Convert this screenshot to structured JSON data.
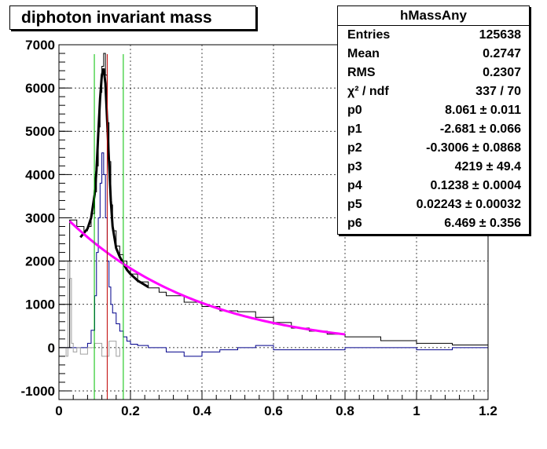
{
  "title": "diphoton invariant mass",
  "stats": {
    "name": "hMassAny",
    "rows": [
      {
        "label": "Entries",
        "value": "125638"
      },
      {
        "label": "Mean",
        "value": "0.2747"
      },
      {
        "label": "RMS",
        "value": "0.2307"
      },
      {
        "label": "χ² / ndf",
        "value": "337 / 70"
      },
      {
        "label": "p0",
        "value": "8.061 ± 0.011"
      },
      {
        "label": "p1",
        "value": "-2.681 ± 0.066"
      },
      {
        "label": "p2",
        "value": "-0.3006 ± 0.0868"
      },
      {
        "label": "p3",
        "value": "4219 ± 49.4"
      },
      {
        "label": "p4",
        "value": "0.1238 ± 0.0004"
      },
      {
        "label": "p5",
        "value": "0.02243 ± 0.00032"
      },
      {
        "label": "p6",
        "value": "6.469 ± 0.356"
      }
    ]
  },
  "chart_data": {
    "type": "line",
    "title": "diphoton invariant mass",
    "xlim": [
      0,
      1.2
    ],
    "ylim": [
      -1200,
      7000
    ],
    "x_ticks": [
      "0",
      "0.2",
      "0.4",
      "0.6",
      "0.8",
      "1",
      "1.2"
    ],
    "x_tick_values": [
      0,
      0.2,
      0.4,
      0.6,
      0.8,
      1,
      1.2
    ],
    "y_ticks": [
      "-1000",
      "0",
      "1000",
      "2000",
      "3000",
      "4000",
      "5000",
      "6000",
      "7000"
    ],
    "y_tick_values": [
      -1000,
      0,
      1000,
      2000,
      3000,
      4000,
      5000,
      6000,
      7000
    ],
    "grid": true,
    "colors": {
      "data": "#000000",
      "fit": "#000000",
      "background": "#ff00ff",
      "subtracted": "#00008b",
      "residual": "#a0a0a0",
      "peak_line": "#c00000",
      "window_lines": "#00c000"
    },
    "vlines": [
      {
        "name": "window-low",
        "x": 0.099,
        "color": "#00c000"
      },
      {
        "name": "peak",
        "x": 0.135,
        "color": "#c00000"
      },
      {
        "name": "window-high",
        "x": 0.18,
        "color": "#00c000"
      }
    ],
    "background_params": {
      "p0": 8.061,
      "p1": -2.681,
      "p2": -0.3006,
      "p3": 4219,
      "p4": 0.1238,
      "p5": 0.02243,
      "p6": 6.469
    },
    "series": [
      {
        "role": "data",
        "x": [
          0.0,
          0.03,
          0.05,
          0.07,
          0.08,
          0.09,
          0.1,
          0.105,
          0.11,
          0.115,
          0.12,
          0.125,
          0.13,
          0.135,
          0.14,
          0.145,
          0.15,
          0.16,
          0.17,
          0.18,
          0.19,
          0.2,
          0.22,
          0.25,
          0.28,
          0.3,
          0.35,
          0.4,
          0.45,
          0.5,
          0.55,
          0.6,
          0.65,
          0.7,
          0.75,
          0.8,
          0.9,
          1.0,
          1.1,
          1.2
        ],
        "y": [
          0,
          2950,
          2800,
          2700,
          2800,
          3100,
          3600,
          4200,
          5100,
          5900,
          6500,
          6800,
          6300,
          5200,
          4300,
          3300,
          2700,
          2350,
          2150,
          2000,
          1850,
          1700,
          1520,
          1380,
          1280,
          1200,
          1050,
          950,
          850,
          830,
          700,
          580,
          450,
          380,
          310,
          250,
          160,
          100,
          60,
          10
        ]
      },
      {
        "role": "fit",
        "x": [
          0.06,
          0.08,
          0.09,
          0.1,
          0.105,
          0.11,
          0.115,
          0.12,
          0.125,
          0.13,
          0.135,
          0.14,
          0.145,
          0.15,
          0.16,
          0.17,
          0.18,
          0.19,
          0.2,
          0.22,
          0.25
        ],
        "y": [
          2550,
          2750,
          3000,
          3550,
          4100,
          4950,
          5750,
          6300,
          6450,
          6100,
          5200,
          4300,
          3400,
          2800,
          2300,
          2100,
          1950,
          1800,
          1700,
          1550,
          1400
        ]
      },
      {
        "role": "subtracted",
        "x": [
          0.0,
          0.03,
          0.06,
          0.08,
          0.09,
          0.1,
          0.105,
          0.11,
          0.115,
          0.12,
          0.125,
          0.13,
          0.135,
          0.14,
          0.145,
          0.15,
          0.16,
          0.17,
          0.18,
          0.19,
          0.2,
          0.22,
          0.25,
          0.3,
          0.35,
          0.4,
          0.45,
          0.5,
          0.55,
          0.6,
          0.7,
          0.8,
          0.9,
          1.0,
          1.1,
          1.2
        ],
        "y": [
          0,
          0,
          0,
          100,
          400,
          1200,
          2200,
          3000,
          3800,
          4500,
          4000,
          3000,
          2000,
          1400,
          1000,
          800,
          550,
          380,
          250,
          150,
          80,
          50,
          0,
          -100,
          -200,
          -100,
          -50,
          0,
          50,
          -50,
          -50,
          0,
          0,
          -50,
          0,
          0
        ]
      },
      {
        "role": "residual",
        "x": [
          0.0,
          0.01,
          0.02,
          0.025,
          0.03,
          0.035,
          0.04,
          0.05,
          0.06,
          0.08,
          0.1,
          0.12,
          0.14,
          0.16,
          0.17
        ],
        "y": [
          0,
          0,
          -200,
          2000,
          1600,
          100,
          -100,
          0,
          -150,
          0,
          100,
          -200,
          150,
          -200,
          0
        ]
      }
    ]
  }
}
